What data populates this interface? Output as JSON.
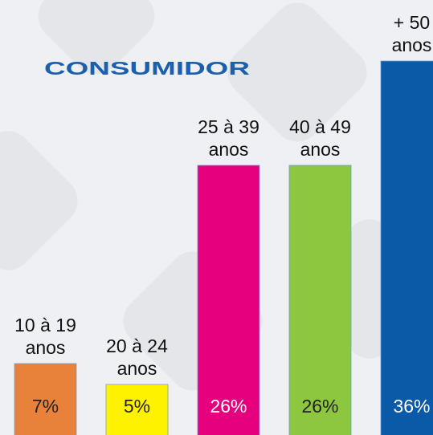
{
  "chart_data": {
    "type": "bar",
    "title": "CONSUMIDOR",
    "categories": [
      "10 à 19 anos",
      "20 à 24 anos",
      "25 à 39 anos",
      "40 à 49 anos",
      "+ 50 anos"
    ],
    "values": [
      7,
      5,
      26,
      26,
      36
    ],
    "value_labels": [
      "7%",
      "5%",
      "26%",
      "26%",
      "36%"
    ],
    "colors": [
      "#e8823a",
      "#fff200",
      "#e6007e",
      "#8dc63f",
      "#0b5aa8"
    ]
  }
}
